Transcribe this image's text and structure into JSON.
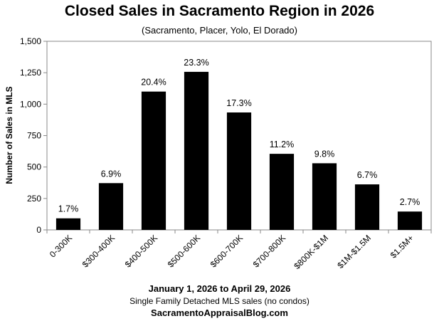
{
  "chart_data": {
    "type": "bar",
    "title": "Closed Sales in Sacramento Region in 2026",
    "subtitle": "(Sacramento, Placer, Yolo, El Dorado)",
    "xlabel": "",
    "ylabel": "Number of Sales in MLS",
    "ylim": [
      0,
      1500
    ],
    "yticks": [
      0,
      250,
      500,
      750,
      1000,
      1250,
      1500
    ],
    "ytick_labels": [
      "0",
      "250",
      "500",
      "750",
      "1,000",
      "1,250",
      "1,500"
    ],
    "categories": [
      "0-300K",
      "$300-400K",
      "$400-500K",
      "$500-600K",
      "$600-700K",
      "$700-800K",
      "$800K-$1M",
      "$1M-$1.5M",
      "$1.5M+"
    ],
    "values": [
      92,
      372,
      1100,
      1257,
      934,
      605,
      530,
      362,
      146
    ],
    "data_labels": [
      "1.7%",
      "6.9%",
      "20.4%",
      "23.3%",
      "17.3%",
      "11.2%",
      "9.8%",
      "6.7%",
      "2.7%"
    ],
    "bar_color": "#000000",
    "grid": false,
    "legend": "none"
  },
  "footer": {
    "date_range": "January 1, 2026 to April 29, 2026",
    "note": "Single Family Detached MLS sales (no condos)",
    "source": "SacramentoAppraisalBlog.com"
  }
}
